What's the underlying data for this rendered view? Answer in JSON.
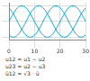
{
  "chart_data": {
    "type": "line",
    "x": [
      0,
      1.7,
      3.3,
      5,
      6.7,
      8.3,
      10,
      11.7,
      13.3,
      15,
      16.7,
      18.3,
      20,
      21.7,
      23.3,
      25,
      26.7,
      28.3,
      30
    ],
    "series": [
      {
        "color": "#00aad4",
        "values": [
          0,
          0.5,
          0.87,
          1,
          0.87,
          0.5,
          0,
          -0.5,
          -0.87,
          -1,
          -0.87,
          -0.5,
          0,
          0.5,
          0.87,
          1,
          0.87,
          0.5,
          0
        ]
      },
      {
        "color": "#00aad4",
        "values": [
          -0.87,
          -1,
          -0.87,
          -0.5,
          0,
          0.5,
          0.87,
          1,
          0.87,
          0.5,
          0,
          -0.5,
          -0.87,
          -1,
          -0.87,
          -0.5,
          0,
          0.5,
          0.87
        ]
      },
      {
        "color": "#00aad4",
        "values": [
          0.87,
          0.5,
          0,
          -0.5,
          -0.87,
          -1,
          -0.87,
          -0.5,
          0,
          0.5,
          0.87,
          1,
          0.87,
          0.5,
          0,
          -0.5,
          -0.87,
          -1,
          -0.87
        ]
      }
    ],
    "xlim": [
      0,
      30
    ],
    "xticks": [
      0,
      10,
      20,
      30
    ],
    "ylim": [
      -1.2,
      1.2
    ],
    "yticks": [
      -1,
      0,
      1
    ],
    "grid": true,
    "tick_labels": "x",
    "annotations": [
      "u12 = u1 − u2",
      "u23 = u2 − u3",
      "û12 = √3 · û"
    ]
  }
}
